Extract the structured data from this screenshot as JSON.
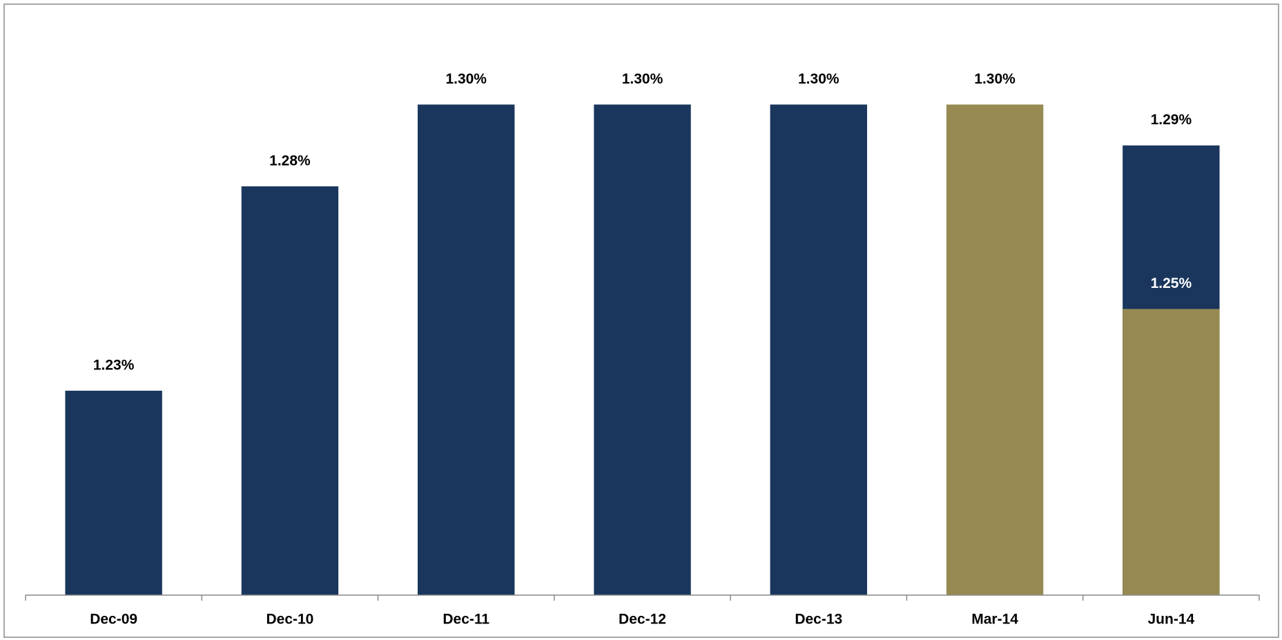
{
  "chart_data": {
    "type": "bar",
    "categories": [
      "Dec-09",
      "Dec-10",
      "Dec-11",
      "Dec-12",
      "Dec-13",
      "Mar-14",
      "Jun-14"
    ],
    "series": [
      {
        "color": "#1a365d",
        "values": [
          1.23,
          1.28,
          1.3,
          1.3,
          1.3,
          null,
          1.29
        ],
        "value_labels": [
          "1.23%",
          "1.28%",
          "1.30%",
          "1.30%",
          "1.30%",
          null,
          "1.29%"
        ]
      },
      {
        "color": "#968a52",
        "values": [
          null,
          null,
          null,
          null,
          null,
          1.3,
          1.25
        ],
        "value_labels": [
          null,
          null,
          null,
          null,
          null,
          "1.30%",
          "1.25%"
        ]
      }
    ],
    "ylim": [
      1.18,
      1.32
    ]
  }
}
